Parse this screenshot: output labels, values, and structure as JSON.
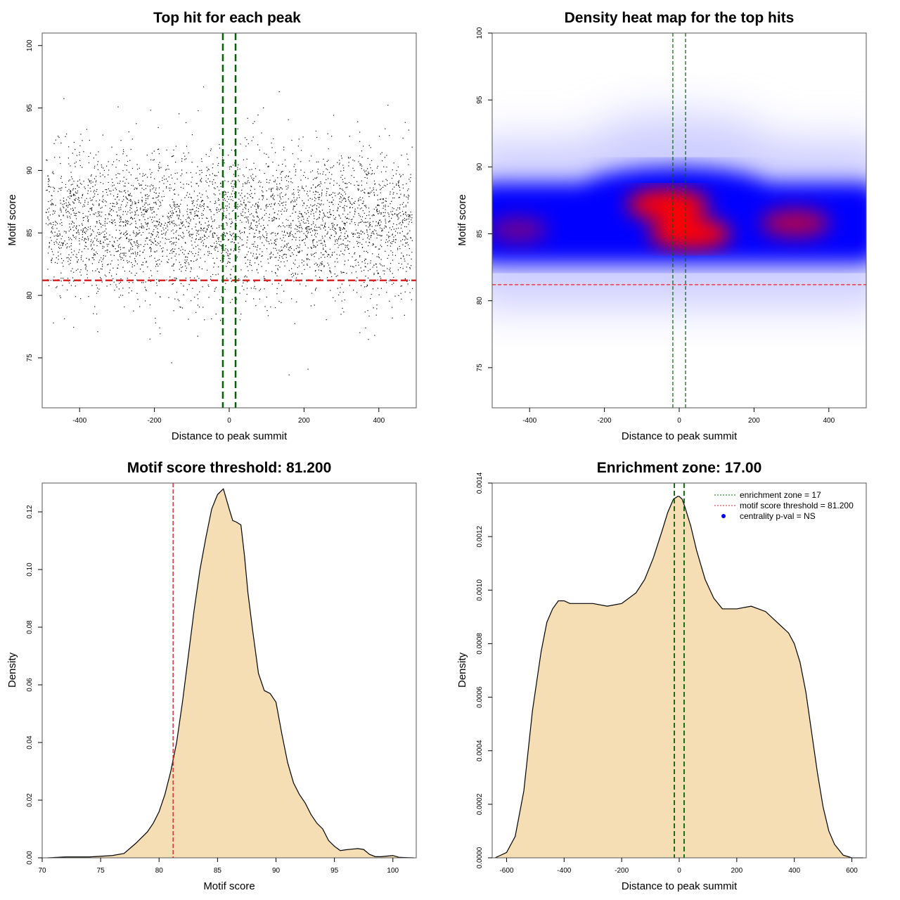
{
  "chart_data": [
    {
      "type": "scatter",
      "title": "Top hit for each peak",
      "xlabel": "Distance to peak summit",
      "ylabel": "Motif score",
      "xlim": [
        -500,
        500
      ],
      "ylim": [
        71,
        101
      ],
      "xticks": [
        "-400",
        "-200",
        "0",
        "200",
        "400"
      ],
      "yticks": [
        "75",
        "80",
        "85",
        "90",
        "95",
        "100"
      ],
      "approx_point_count": 4000,
      "score_center": 85.8,
      "score_sd": 2.9,
      "enrichment_zone": [
        -17,
        17
      ],
      "threshold": 81.2,
      "colors": {
        "points": "#000000",
        "zone": "#006400",
        "threshold": "#d62728"
      }
    },
    {
      "type": "heatmap",
      "title": "Density heat map for the top hits",
      "xlabel": "Distance to peak summit",
      "ylabel": "Motif score",
      "xlim": [
        -500,
        500
      ],
      "ylim": [
        72,
        100
      ],
      "xticks": [
        "-400",
        "-200",
        "0",
        "200",
        "400"
      ],
      "yticks": [
        "75",
        "80",
        "85",
        "90",
        "95",
        "100"
      ],
      "hotspots": [
        {
          "x": -30,
          "y": 87.2,
          "intensity": 1.0
        },
        {
          "x": 30,
          "y": 85.0,
          "intensity": 1.0
        },
        {
          "x": 310,
          "y": 85.8,
          "intensity": 0.7
        },
        {
          "x": -430,
          "y": 85.3,
          "intensity": 0.45
        }
      ],
      "enrichment_zone": [
        -17,
        17
      ],
      "threshold": 81.2,
      "colors": {
        "low": "#ffffff",
        "mid": "#0000ff",
        "high": "#ff0000"
      }
    },
    {
      "type": "area",
      "title": "Motif score threshold: 81.200",
      "xlabel": "Motif score",
      "ylabel": "Density",
      "xlim": [
        70,
        102
      ],
      "ylim": [
        0,
        0.13
      ],
      "xticks": [
        "70",
        "75",
        "80",
        "85",
        "90",
        "95",
        "100"
      ],
      "yticks": [
        "0.00",
        "0.02",
        "0.04",
        "0.06",
        "0.08",
        "0.10",
        "0.12"
      ],
      "x": [
        70.5,
        72,
        74,
        76,
        77,
        78,
        78.5,
        79,
        79.5,
        80,
        80.5,
        81,
        81.5,
        82,
        82.5,
        83,
        83.5,
        84,
        84.5,
        85,
        85.5,
        86,
        86.3,
        86.6,
        87,
        87.3,
        87.6,
        88,
        88.5,
        89,
        89.5,
        90,
        90.5,
        91,
        91.5,
        92,
        92.5,
        93,
        93.5,
        94,
        94.5,
        95,
        95.5,
        96,
        96.5,
        97,
        97.5,
        98,
        98.5,
        99,
        100,
        100.5,
        101,
        101.8
      ],
      "y": [
        0.0,
        0.0003,
        0.0003,
        0.0008,
        0.0015,
        0.005,
        0.007,
        0.009,
        0.012,
        0.016,
        0.022,
        0.03,
        0.04,
        0.054,
        0.07,
        0.086,
        0.1,
        0.111,
        0.121,
        0.126,
        0.128,
        0.121,
        0.117,
        0.1165,
        0.1155,
        0.105,
        0.092,
        0.079,
        0.064,
        0.058,
        0.057,
        0.054,
        0.043,
        0.033,
        0.026,
        0.022,
        0.019,
        0.015,
        0.012,
        0.01,
        0.006,
        0.004,
        0.0025,
        0.0028,
        0.003,
        0.0032,
        0.0029,
        0.0012,
        0.0004,
        0.0004,
        0.0008,
        0.0002,
        0.0001,
        0.0
      ],
      "threshold": 81.2,
      "colors": {
        "fill": "#f5deb3",
        "threshold": "#d62728"
      }
    },
    {
      "type": "area",
      "title": "Enrichment zone: 17.00",
      "xlabel": "Distance to peak summit",
      "ylabel": "Density",
      "xlim": [
        -650,
        650
      ],
      "ylim": [
        0,
        0.0014
      ],
      "xticks": [
        "-600",
        "-400",
        "-200",
        "0",
        "200",
        "400",
        "600"
      ],
      "yticks": [
        "0.0000",
        "0.0002",
        "0.0004",
        "0.0006",
        "0.0008",
        "0.0010",
        "0.0012",
        "0.0014"
      ],
      "x": [
        -640,
        -600,
        -570,
        -540,
        -510,
        -480,
        -460,
        -440,
        -420,
        -400,
        -380,
        -350,
        -300,
        -250,
        -200,
        -150,
        -120,
        -90,
        -60,
        -40,
        -20,
        -5,
        0,
        10,
        20,
        40,
        60,
        90,
        120,
        150,
        200,
        250,
        300,
        350,
        380,
        400,
        420,
        440,
        460,
        480,
        500,
        520,
        540,
        570,
        600,
        640
      ],
      "y": [
        0.0,
        2e-05,
        8e-05,
        0.00025,
        0.00055,
        0.00077,
        0.00088,
        0.00093,
        0.00096,
        0.00096,
        0.00095,
        0.00095,
        0.00095,
        0.00094,
        0.00095,
        0.00099,
        0.00104,
        0.00112,
        0.00122,
        0.00129,
        0.00134,
        0.00135,
        0.00135,
        0.00134,
        0.00131,
        0.00124,
        0.00115,
        0.00104,
        0.00097,
        0.00093,
        0.00093,
        0.00094,
        0.00092,
        0.00087,
        0.00084,
        0.0008,
        0.00073,
        0.00062,
        0.00047,
        0.00032,
        0.00019,
        0.0001,
        5e-05,
        1e-05,
        0.0,
        0.0
      ],
      "enrichment_zone": [
        -17,
        17
      ],
      "colors": {
        "fill": "#f5deb3",
        "zone": "#006400",
        "threshold": "#d62728",
        "pval": "#0000ff"
      },
      "legend": {
        "position": "top-right",
        "entries": [
          {
            "label": "enrichment zone = 17",
            "style": "dotted-green"
          },
          {
            "label": "motif score threshold = 81.200",
            "style": "dotted-red"
          },
          {
            "label": "centrality p-val = NS",
            "style": "blue-dot"
          }
        ]
      }
    }
  ]
}
